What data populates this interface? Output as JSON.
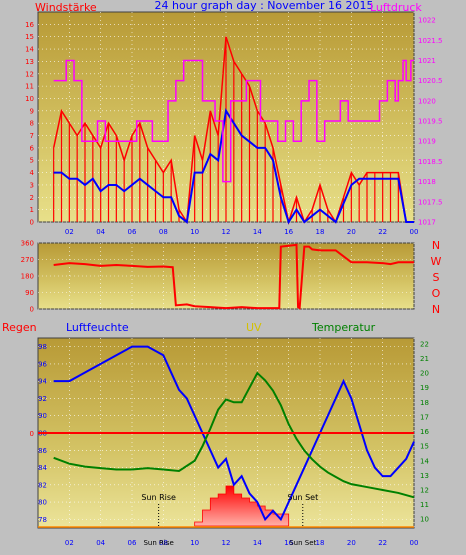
{
  "header": {
    "left_label": "Windstärke",
    "center_title": "24 hour graph day : November 16 2015",
    "right_label": "Luftdruck",
    "colors": {
      "left": "#ff0000",
      "center": "#0000ff",
      "right": "#ff00ff"
    }
  },
  "panel2": {
    "direction_labels": [
      "N",
      "W",
      "S",
      "O",
      "N"
    ]
  },
  "panel3": {
    "regen_label": "Regen",
    "luftfeuchte_label": "Luftfeuchte",
    "uv_label": "UV",
    "temperatur_label": "Temperatur",
    "sunrise_label": "Sun Rise",
    "sunset_label": "Sun Set",
    "sunrise_bottom_label": "Sun Rise",
    "sunset_bottom_label": "Sun Set"
  },
  "chart_data": [
    {
      "type": "line",
      "name": "wind-pressure",
      "x_tick_labels": [
        "02",
        "04",
        "06",
        "08",
        "10",
        "12",
        "14",
        "16",
        "18",
        "20",
        "22",
        "00"
      ],
      "y_left_ticks": [
        0,
        1,
        2,
        3,
        4,
        5,
        6,
        7,
        8,
        9,
        10,
        11,
        12,
        13,
        14,
        15,
        16
      ],
      "y_right_ticks": [
        "1017",
        "1017.5",
        "1018",
        "1018.5",
        "1019",
        "1019.5",
        "1020",
        "1020.5",
        "1021",
        "1021.5",
        "1022"
      ],
      "ylim_left": [
        0,
        17
      ],
      "ylim_right": [
        1017,
        1022.2
      ],
      "series": [
        {
          "name": "Windstärke",
          "axis": "left",
          "color": "#ff0000",
          "x": [
            1.0,
            1.5,
            2.0,
            2.5,
            3.0,
            3.5,
            4.0,
            4.5,
            5.0,
            5.5,
            6.0,
            6.5,
            7.0,
            7.5,
            8.0,
            8.5,
            9.0,
            9.5,
            10.0,
            10.5,
            11.0,
            11.5,
            12.0,
            12.5,
            13.0,
            13.5,
            14.0,
            14.5,
            15.0,
            15.5,
            16.0,
            16.5,
            17.0,
            17.5,
            18.0,
            18.5,
            19.0,
            19.5,
            20.0,
            20.5,
            21.0,
            21.5,
            22.0,
            22.5,
            23.0,
            23.5,
            24.0
          ],
          "values": [
            6,
            9,
            8,
            7,
            8,
            7,
            6,
            8,
            7,
            5,
            7,
            8,
            6,
            5,
            4,
            5,
            1,
            0,
            7,
            5,
            9,
            7,
            15,
            13,
            12,
            11,
            9,
            8,
            6,
            3,
            0,
            2,
            0,
            1,
            3,
            1,
            0,
            2,
            4,
            3,
            4,
            4,
            4,
            4,
            4,
            0,
            0
          ]
        },
        {
          "name": "Windstärke avg",
          "axis": "left",
          "color": "#0000ff",
          "x": [
            1.0,
            1.5,
            2.0,
            2.5,
            3.0,
            3.5,
            4.0,
            4.5,
            5.0,
            5.5,
            6.0,
            6.5,
            7.0,
            7.5,
            8.0,
            8.5,
            9.0,
            9.5,
            10.0,
            10.5,
            11.0,
            11.5,
            12.0,
            12.5,
            13.0,
            13.5,
            14.0,
            14.5,
            15.0,
            15.5,
            16.0,
            16.5,
            17.0,
            17.5,
            18.0,
            18.5,
            19.0,
            19.5,
            20.0,
            20.5,
            21.0,
            21.5,
            22.0,
            22.5,
            23.0,
            23.5,
            24.0
          ],
          "values": [
            4,
            4,
            3.5,
            3.5,
            3,
            3.5,
            2.5,
            3,
            3,
            2.5,
            3,
            3.5,
            3,
            2.5,
            2,
            2,
            0.5,
            0,
            4,
            4,
            5.5,
            5,
            9,
            8,
            7,
            6.5,
            6,
            6,
            5,
            2,
            0,
            1,
            0,
            0.5,
            1,
            0.5,
            0,
            1.5,
            3,
            3.5,
            3.5,
            3.5,
            3.5,
            3.5,
            3.5,
            0,
            0
          ]
        },
        {
          "name": "Luftdruck",
          "axis": "right",
          "color": "#ff00ff",
          "x": [
            1.0,
            1.8,
            1.8,
            2.3,
            2.3,
            2.8,
            2.8,
            3.8,
            3.8,
            4.3,
            4.3,
            6.3,
            6.3,
            7.3,
            7.3,
            8.3,
            8.3,
            8.8,
            8.8,
            9.3,
            9.3,
            10.5,
            10.5,
            11.3,
            11.3,
            11.8,
            11.8,
            12.3,
            12.3,
            13.3,
            13.3,
            14.2,
            14.2,
            15.3,
            15.3,
            15.8,
            15.8,
            16.3,
            16.3,
            16.8,
            16.8,
            17.3,
            17.3,
            17.8,
            17.8,
            18.3,
            18.3,
            19.3,
            19.3,
            19.8,
            19.8,
            21.8,
            21.8,
            22.3,
            22.3,
            22.8,
            22.8,
            23.0,
            23.0,
            23.3,
            23.3,
            23.5,
            23.5,
            23.8,
            23.8,
            24.0
          ],
          "values": [
            1020.5,
            1020.5,
            1021,
            1021,
            1020.5,
            1020.5,
            1019,
            1019,
            1019.5,
            1019.5,
            1019,
            1019,
            1019.5,
            1019.5,
            1019,
            1019,
            1020,
            1020,
            1020.5,
            1020.5,
            1021,
            1021,
            1020,
            1020,
            1019.5,
            1019.5,
            1018,
            1018,
            1020,
            1020,
            1020.5,
            1020.5,
            1019.5,
            1019.5,
            1019,
            1019,
            1019.5,
            1019.5,
            1019,
            1019,
            1020,
            1020,
            1020.5,
            1020.5,
            1019,
            1019,
            1019.5,
            1019.5,
            1020,
            1020,
            1019.5,
            1019.5,
            1020,
            1020,
            1020.5,
            1020.5,
            1020,
            1020,
            1020.5,
            1020.5,
            1021,
            1021,
            1020.5,
            1020.5,
            1021,
            1021
          ]
        }
      ]
    },
    {
      "type": "line",
      "name": "wind-direction",
      "y_left_ticks": [
        0,
        90,
        180,
        270,
        360
      ],
      "ylim": [
        0,
        360
      ],
      "series": [
        {
          "name": "Windrichtung",
          "color": "#ff0000",
          "x": [
            1.0,
            2.0,
            3.0,
            4.0,
            5.0,
            6.0,
            7.0,
            8.0,
            8.6,
            8.8,
            9.5,
            10.0,
            11.0,
            12.0,
            13.0,
            14.0,
            15.0,
            15.4,
            15.5,
            16.5,
            16.6,
            16.7,
            17.0,
            17.3,
            17.5,
            18.0,
            19.0,
            20.0,
            21.0,
            22.0,
            22.5,
            23.0,
            24.0
          ],
          "values": [
            240,
            250,
            245,
            235,
            240,
            235,
            230,
            232,
            228,
            20,
            25,
            15,
            10,
            5,
            10,
            5,
            5,
            5,
            340,
            350,
            10,
            5,
            340,
            340,
            325,
            320,
            320,
            255,
            255,
            250,
            245,
            255,
            255
          ]
        }
      ]
    },
    {
      "type": "line",
      "name": "humidity-temperature-uv",
      "x_tick_labels": [
        "02",
        "04",
        "06",
        "08",
        "10",
        "12",
        "14",
        "16",
        "18",
        "20",
        "22",
        "00"
      ],
      "y_left_ticks": [
        78,
        80,
        82,
        84,
        86,
        88,
        90,
        92,
        94,
        96,
        98
      ],
      "y_right_ticks": [
        10,
        11,
        12,
        13,
        14,
        15,
        16,
        17,
        18,
        19,
        20,
        21,
        22
      ],
      "regen_value": 0,
      "ylim_left": [
        77,
        99
      ],
      "ylim_right": [
        9.4,
        22.4
      ],
      "series": [
        {
          "name": "Luftfeuchte",
          "axis": "left",
          "color": "#0000ff",
          "x": [
            1.0,
            2.0,
            3.0,
            4.0,
            5.0,
            6.0,
            7.0,
            8.0,
            8.5,
            9.0,
            9.5,
            10.0,
            10.5,
            11.0,
            11.5,
            12.0,
            12.5,
            13.0,
            13.5,
            14.0,
            14.5,
            15.0,
            15.5,
            16.0,
            16.5,
            17.0,
            17.5,
            18.0,
            18.5,
            19.0,
            19.5,
            20.0,
            20.5,
            21.0,
            21.5,
            22.0,
            22.5,
            23.0,
            23.5,
            24.0
          ],
          "values": [
            94,
            94,
            95,
            96,
            97,
            98,
            98,
            97,
            95,
            93,
            92,
            90,
            88,
            86,
            84,
            85,
            82,
            83,
            81,
            80,
            78,
            79,
            78,
            80,
            82,
            84,
            86,
            88,
            90,
            92,
            94,
            92,
            89,
            86,
            84,
            83,
            83,
            84,
            85,
            87
          ]
        },
        {
          "name": "Temperatur",
          "axis": "right",
          "color": "#008000",
          "x": [
            1.0,
            2.0,
            3.0,
            4.0,
            5.0,
            6.0,
            7.0,
            8.0,
            9.0,
            10.0,
            10.5,
            11.0,
            11.5,
            12.0,
            12.5,
            13.0,
            13.5,
            14.0,
            14.5,
            15.0,
            15.5,
            16.0,
            16.5,
            17.0,
            17.5,
            18.0,
            18.5,
            19.0,
            19.5,
            20.0,
            21.0,
            22.0,
            23.0,
            24.0
          ],
          "values": [
            14.2,
            13.8,
            13.6,
            13.5,
            13.4,
            13.4,
            13.5,
            13.4,
            13.3,
            14.0,
            15.0,
            16.2,
            17.5,
            18.2,
            18.0,
            18.0,
            19.0,
            20.0,
            19.5,
            18.8,
            17.8,
            16.5,
            15.5,
            14.7,
            14.1,
            13.6,
            13.2,
            12.9,
            12.6,
            12.4,
            12.2,
            12.0,
            11.8,
            11.5
          ]
        }
      ],
      "uv": {
        "name": "UV",
        "color": "#ff0000",
        "x": [
          10.0,
          10.5,
          11.0,
          11.5,
          12.0,
          12.5,
          13.0,
          13.5,
          14.0,
          14.5,
          15.0,
          15.5,
          16.0
        ],
        "values": [
          0.1,
          0.4,
          0.7,
          0.8,
          1.0,
          0.8,
          0.7,
          0.6,
          0.5,
          0.4,
          0.3,
          0.3,
          0
        ]
      },
      "sunrise_hour": 7.7,
      "sunset_hour": 16.9
    }
  ]
}
